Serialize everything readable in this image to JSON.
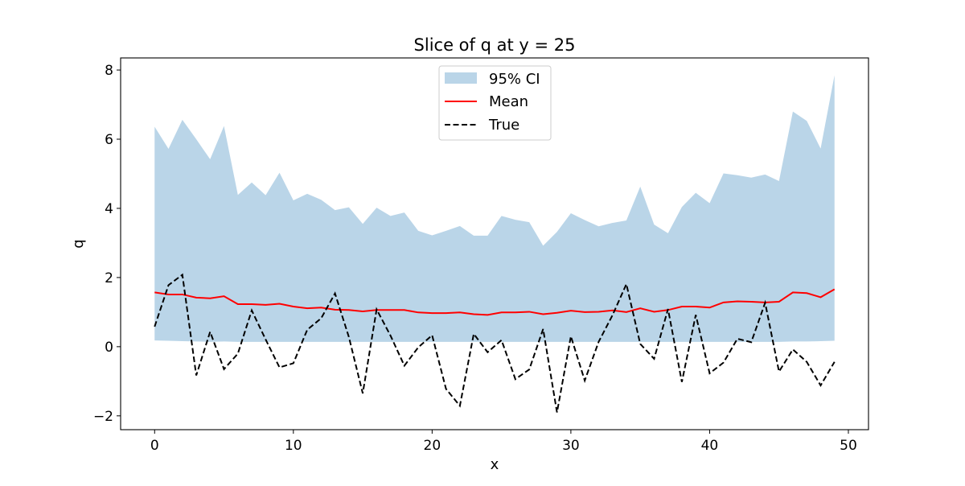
{
  "chart_data": {
    "type": "line",
    "title": "Slice of q at y = 25",
    "xlabel": "x",
    "ylabel": "q",
    "xlim": [
      -2.45,
      51.45
    ],
    "ylim": [
      -2.4,
      8.35
    ],
    "xticks": [
      0,
      10,
      20,
      30,
      40,
      50
    ],
    "yticks": [
      -2,
      0,
      2,
      4,
      6,
      8
    ],
    "xtick_labels": [
      "0",
      "10",
      "20",
      "30",
      "40",
      "50"
    ],
    "ytick_labels": [
      "−2",
      "0",
      "2",
      "4",
      "6",
      "8"
    ],
    "grid": false,
    "legend_position": "top-center",
    "x": [
      0,
      1,
      2,
      3,
      4,
      5,
      6,
      7,
      8,
      9,
      10,
      11,
      12,
      13,
      14,
      15,
      16,
      17,
      18,
      19,
      20,
      21,
      22,
      23,
      24,
      25,
      26,
      27,
      28,
      29,
      30,
      31,
      32,
      33,
      34,
      35,
      36,
      37,
      38,
      39,
      40,
      41,
      42,
      43,
      44,
      45,
      46,
      47,
      48,
      49
    ],
    "ci_band": {
      "name": "95% CI",
      "color": "#bad5e8",
      "upper": [
        6.36,
        5.72,
        6.56,
        6.0,
        5.42,
        6.38,
        4.39,
        4.75,
        4.38,
        5.03,
        4.23,
        4.42,
        4.25,
        3.95,
        4.03,
        3.55,
        4.02,
        3.78,
        3.88,
        3.35,
        3.22,
        3.35,
        3.49,
        3.21,
        3.21,
        3.78,
        3.67,
        3.6,
        2.92,
        3.32,
        3.86,
        3.66,
        3.48,
        3.58,
        3.65,
        4.63,
        3.53,
        3.28,
        4.04,
        4.45,
        4.15,
        5.01,
        4.96,
        4.89,
        4.98,
        4.79,
        6.8,
        6.53,
        5.73,
        7.85
      ],
      "lower": [
        0.18,
        0.17,
        0.16,
        0.15,
        0.14,
        0.15,
        0.14,
        0.14,
        0.14,
        0.14,
        0.14,
        0.14,
        0.14,
        0.14,
        0.14,
        0.14,
        0.14,
        0.14,
        0.14,
        0.14,
        0.14,
        0.14,
        0.14,
        0.14,
        0.14,
        0.14,
        0.14,
        0.14,
        0.14,
        0.14,
        0.14,
        0.14,
        0.14,
        0.14,
        0.14,
        0.14,
        0.14,
        0.14,
        0.14,
        0.14,
        0.14,
        0.14,
        0.14,
        0.14,
        0.14,
        0.14,
        0.15,
        0.15,
        0.16,
        0.17
      ]
    },
    "series": [
      {
        "name": "Mean",
        "color": "#ff0000",
        "style": "solid",
        "values": [
          1.57,
          1.51,
          1.51,
          1.42,
          1.4,
          1.46,
          1.23,
          1.23,
          1.21,
          1.24,
          1.16,
          1.11,
          1.13,
          1.07,
          1.06,
          1.02,
          1.06,
          1.06,
          1.06,
          0.99,
          0.97,
          0.97,
          0.99,
          0.94,
          0.92,
          0.99,
          0.99,
          1.01,
          0.94,
          0.98,
          1.04,
          1.0,
          1.01,
          1.05,
          1.0,
          1.11,
          1.01,
          1.06,
          1.16,
          1.16,
          1.13,
          1.28,
          1.31,
          1.3,
          1.28,
          1.3,
          1.57,
          1.55,
          1.43,
          1.66
        ]
      },
      {
        "name": "True",
        "color": "#000000",
        "style": "dashed",
        "values": [
          0.58,
          1.78,
          2.08,
          -0.83,
          0.43,
          -0.65,
          -0.2,
          1.05,
          0.21,
          -0.6,
          -0.48,
          0.49,
          0.82,
          1.54,
          0.28,
          -1.35,
          1.08,
          0.32,
          -0.55,
          -0.02,
          0.33,
          -1.22,
          -1.71,
          0.37,
          -0.16,
          0.19,
          -0.94,
          -0.66,
          0.51,
          -1.9,
          0.3,
          -0.98,
          0.14,
          0.91,
          1.81,
          0.08,
          -0.35,
          1.09,
          -1.02,
          0.92,
          -0.77,
          -0.46,
          0.23,
          0.13,
          1.27,
          -0.72,
          -0.08,
          -0.44,
          -1.12,
          -0.44
        ]
      }
    ]
  }
}
